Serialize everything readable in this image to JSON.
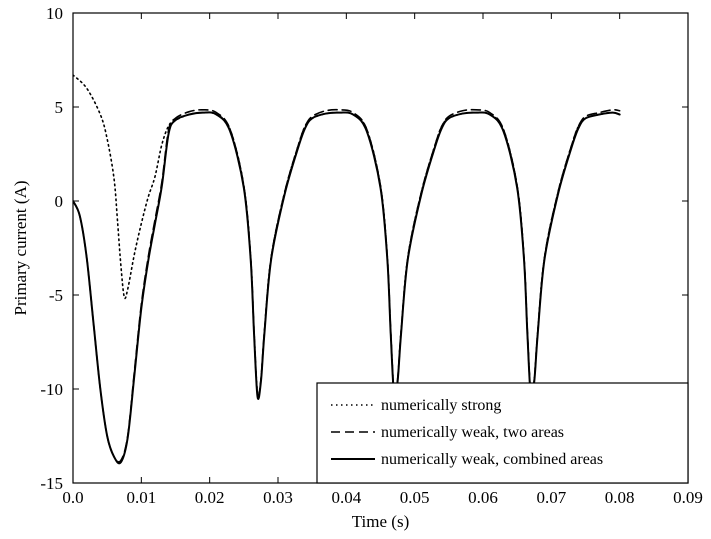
{
  "chart_data": {
    "type": "line",
    "title": "",
    "xlabel": "Time (s)",
    "ylabel": "Primary current (A)",
    "xlim": [
      0.0,
      0.09
    ],
    "ylim": [
      -15,
      10
    ],
    "xticks": [
      0.0,
      0.01,
      0.02,
      0.03,
      0.04,
      0.05,
      0.06,
      0.07,
      0.08,
      0.09
    ],
    "xtick_labels": [
      "0.0",
      "0.01",
      "0.02",
      "0.03",
      "0.04",
      "0.05",
      "0.06",
      "0.07",
      "0.08",
      "0.09"
    ],
    "yticks": [
      10,
      5,
      0,
      -5,
      -10,
      -15
    ],
    "ytick_labels": [
      "10",
      "5",
      "0",
      "-5",
      "-10",
      "-15"
    ],
    "grid": false,
    "legend_position": "bottom-right",
    "series": [
      {
        "name": "numerically strong",
        "style": "dotted",
        "color": "#000000",
        "x": [
          0.0,
          0.002,
          0.004,
          0.005,
          0.006,
          0.0065,
          0.007,
          0.0075,
          0.008,
          0.009,
          0.01,
          0.011,
          0.012,
          0.013,
          0.014,
          0.015,
          0.017,
          0.019,
          0.021,
          0.023,
          0.025,
          0.026,
          0.0265,
          0.027,
          0.0275,
          0.028,
          0.029,
          0.031,
          0.033,
          0.034,
          0.035,
          0.037,
          0.039,
          0.041,
          0.043,
          0.045,
          0.046,
          0.0465,
          0.047,
          0.0475,
          0.048,
          0.049,
          0.051,
          0.053,
          0.054,
          0.055,
          0.057,
          0.059,
          0.061,
          0.063,
          0.065,
          0.066,
          0.0665,
          0.067,
          0.0675,
          0.068,
          0.069,
          0.071,
          0.073,
          0.074,
          0.075,
          0.077,
          0.079,
          0.08
        ],
        "y": [
          6.7,
          6.0,
          4.6,
          3.3,
          1.2,
          -1.0,
          -3.4,
          -5.1,
          -4.7,
          -2.8,
          -1.2,
          0.2,
          1.3,
          3.0,
          4.0,
          4.3,
          4.6,
          4.7,
          4.6,
          3.8,
          0.8,
          -3.0,
          -7.0,
          -10.2,
          -9.5,
          -7.0,
          -3.0,
          0.5,
          3.0,
          4.0,
          4.4,
          4.65,
          4.7,
          4.6,
          3.8,
          0.8,
          -3.0,
          -7.0,
          -10.2,
          -9.5,
          -7.0,
          -3.0,
          0.5,
          3.0,
          4.0,
          4.4,
          4.65,
          4.7,
          4.6,
          3.8,
          0.8,
          -3.0,
          -7.0,
          -10.2,
          -9.5,
          -7.0,
          -3.0,
          0.5,
          3.0,
          4.0,
          4.4,
          4.6,
          4.7,
          4.6
        ]
      },
      {
        "name": "numerically weak, two areas",
        "style": "dashed",
        "color": "#000000",
        "x": [
          0.0,
          0.001,
          0.002,
          0.003,
          0.004,
          0.005,
          0.006,
          0.007,
          0.008,
          0.009,
          0.01,
          0.011,
          0.012,
          0.013,
          0.014,
          0.015,
          0.017,
          0.019,
          0.021,
          0.023,
          0.025,
          0.026,
          0.0265,
          0.027,
          0.0275,
          0.028,
          0.029,
          0.031,
          0.033,
          0.034,
          0.035,
          0.037,
          0.039,
          0.041,
          0.043,
          0.045,
          0.046,
          0.0465,
          0.047,
          0.0475,
          0.048,
          0.049,
          0.051,
          0.053,
          0.054,
          0.055,
          0.057,
          0.059,
          0.061,
          0.063,
          0.065,
          0.066,
          0.0665,
          0.067,
          0.0675,
          0.068,
          0.069,
          0.071,
          0.073,
          0.074,
          0.075,
          0.077,
          0.079,
          0.08
        ],
        "y": [
          0.0,
          -0.8,
          -3.0,
          -6.5,
          -10.0,
          -12.5,
          -13.6,
          -13.8,
          -12.5,
          -9.0,
          -5.5,
          -3.0,
          -1.0,
          1.0,
          3.8,
          4.4,
          4.75,
          4.85,
          4.7,
          3.8,
          0.8,
          -3.0,
          -7.0,
          -10.3,
          -9.5,
          -7.0,
          -3.0,
          0.5,
          3.0,
          4.0,
          4.5,
          4.8,
          4.85,
          4.7,
          3.8,
          0.8,
          -3.0,
          -7.0,
          -10.3,
          -9.5,
          -7.0,
          -3.0,
          0.5,
          3.0,
          4.0,
          4.5,
          4.8,
          4.85,
          4.7,
          3.8,
          0.8,
          -3.0,
          -7.0,
          -10.3,
          -9.5,
          -7.0,
          -3.0,
          0.5,
          3.0,
          4.0,
          4.5,
          4.7,
          4.85,
          4.8
        ]
      },
      {
        "name": "numerically weak, combined areas",
        "style": "solid",
        "color": "#000000",
        "x": [
          0.0,
          0.001,
          0.002,
          0.003,
          0.004,
          0.005,
          0.006,
          0.007,
          0.008,
          0.009,
          0.01,
          0.011,
          0.012,
          0.013,
          0.014,
          0.015,
          0.017,
          0.019,
          0.021,
          0.023,
          0.025,
          0.026,
          0.0265,
          0.027,
          0.0275,
          0.028,
          0.029,
          0.031,
          0.033,
          0.034,
          0.035,
          0.037,
          0.039,
          0.041,
          0.043,
          0.045,
          0.046,
          0.0465,
          0.047,
          0.0475,
          0.048,
          0.049,
          0.051,
          0.053,
          0.054,
          0.055,
          0.057,
          0.059,
          0.061,
          0.063,
          0.065,
          0.066,
          0.0665,
          0.067,
          0.0675,
          0.068,
          0.069,
          0.071,
          0.073,
          0.074,
          0.075,
          0.077,
          0.079,
          0.08
        ],
        "y": [
          0.0,
          -0.8,
          -3.0,
          -6.5,
          -10.0,
          -12.5,
          -13.6,
          -13.9,
          -12.6,
          -9.2,
          -5.7,
          -3.2,
          -1.2,
          0.8,
          3.6,
          4.3,
          4.6,
          4.7,
          4.6,
          3.7,
          0.7,
          -3.1,
          -7.1,
          -10.4,
          -9.6,
          -7.1,
          -3.1,
          0.4,
          2.9,
          3.9,
          4.4,
          4.65,
          4.7,
          4.6,
          3.7,
          0.7,
          -3.1,
          -7.1,
          -10.4,
          -9.6,
          -7.1,
          -3.1,
          0.4,
          2.9,
          3.9,
          4.4,
          4.65,
          4.7,
          4.6,
          3.7,
          0.7,
          -3.1,
          -7.1,
          -10.4,
          -9.6,
          -7.1,
          -3.1,
          0.4,
          2.9,
          3.9,
          4.4,
          4.6,
          4.7,
          4.6
        ]
      }
    ]
  }
}
